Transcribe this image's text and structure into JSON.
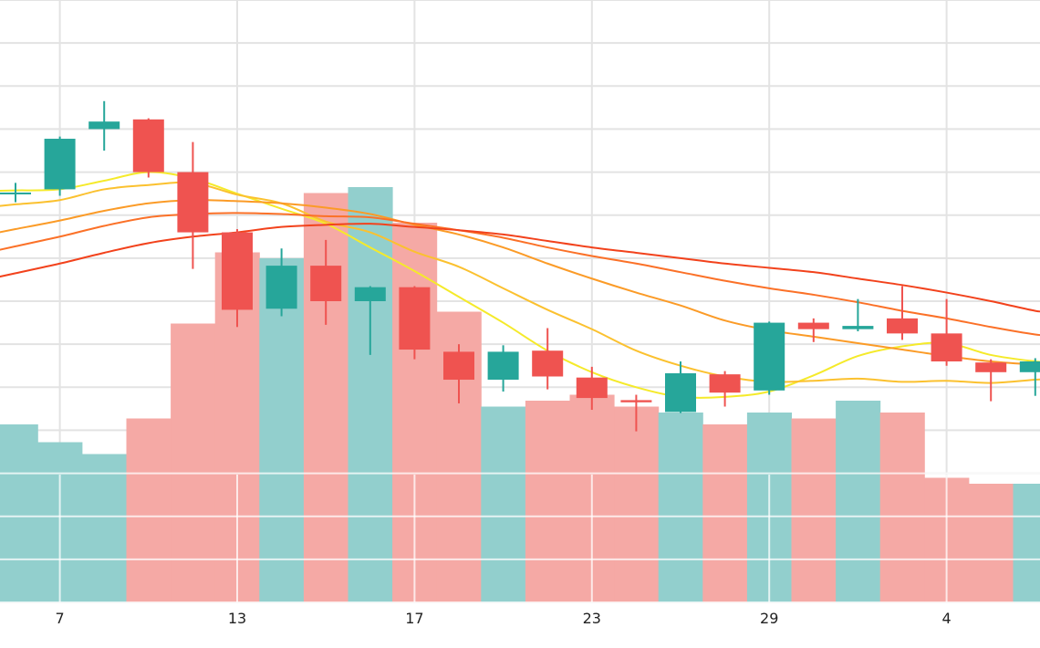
{
  "chart_data": {
    "type": "candlestick",
    "grid": true,
    "x_tick_labels": [
      {
        "index": 1,
        "label": "7"
      },
      {
        "index": 5,
        "label": "13"
      },
      {
        "index": 9,
        "label": "17"
      },
      {
        "index": 13,
        "label": "23"
      },
      {
        "index": 17,
        "label": "29"
      },
      {
        "index": 21,
        "label": "4"
      }
    ],
    "price_range": [
      0,
      28
    ],
    "volume_range": [
      0,
      100
    ],
    "candles": [
      {
        "open": 19.05,
        "high": 19.5,
        "low": 18.6,
        "close": 19.05
      },
      {
        "open": 19.2,
        "high": 21.65,
        "low": 18.9,
        "close": 21.55
      },
      {
        "open": 22.0,
        "high": 23.3,
        "low": 21.0,
        "close": 22.35
      },
      {
        "open": 22.45,
        "high": 22.5,
        "low": 19.75,
        "close": 20.0
      },
      {
        "open": 20.0,
        "high": 21.4,
        "low": 15.5,
        "close": 17.2
      },
      {
        "open": 17.2,
        "high": 17.35,
        "low": 12.8,
        "close": 13.6
      },
      {
        "open": 13.65,
        "high": 16.45,
        "low": 13.3,
        "close": 15.65
      },
      {
        "open": 15.65,
        "high": 16.85,
        "low": 12.9,
        "close": 14.0
      },
      {
        "open": 14.0,
        "high": 14.7,
        "low": 11.5,
        "close": 14.65
      },
      {
        "open": 14.65,
        "high": 14.7,
        "low": 11.3,
        "close": 11.75
      },
      {
        "open": 11.65,
        "high": 12.0,
        "low": 9.25,
        "close": 10.35
      },
      {
        "open": 10.35,
        "high": 11.95,
        "low": 9.8,
        "close": 11.65
      },
      {
        "open": 11.7,
        "high": 12.75,
        "low": 9.9,
        "close": 10.5
      },
      {
        "open": 10.45,
        "high": 10.95,
        "low": 8.95,
        "close": 9.5
      },
      {
        "open": 9.4,
        "high": 9.65,
        "low": 7.95,
        "close": 9.3
      },
      {
        "open": 8.85,
        "high": 11.2,
        "low": 8.8,
        "close": 10.65
      },
      {
        "open": 10.6,
        "high": 10.75,
        "low": 9.1,
        "close": 9.75
      },
      {
        "open": 9.85,
        "high": 13.05,
        "low": 9.65,
        "close": 13.0
      },
      {
        "open": 13.0,
        "high": 13.2,
        "low": 12.1,
        "close": 12.7
      },
      {
        "open": 12.7,
        "high": 14.1,
        "low": 12.6,
        "close": 12.85
      },
      {
        "open": 13.2,
        "high": 14.7,
        "low": 12.2,
        "close": 12.5
      },
      {
        "open": 12.5,
        "high": 14.1,
        "low": 11.0,
        "close": 11.2
      },
      {
        "open": 11.15,
        "high": 11.3,
        "low": 9.35,
        "close": 10.7
      },
      {
        "open": 10.7,
        "high": 11.35,
        "low": 9.6,
        "close": 11.2
      }
    ],
    "volume": [
      30,
      27,
      25,
      31,
      47,
      59,
      58,
      69,
      70,
      64,
      49,
      33,
      34,
      35,
      33,
      32,
      30,
      32,
      31,
      34,
      32,
      21,
      20,
      20
    ],
    "moving_averages": [
      {
        "color": "#f5ea2a",
        "values": [
          19.15,
          19.2,
          19.6,
          20.0,
          19.7,
          19.0,
          18.3,
          17.6,
          16.5,
          15.4,
          14.2,
          13.0,
          11.7,
          10.7,
          10.0,
          9.55,
          9.55,
          9.8,
          10.55,
          11.45,
          11.9,
          12.05,
          11.5,
          11.2
        ]
      },
      {
        "color": "#fbc12f",
        "values": [
          18.5,
          18.7,
          19.2,
          19.4,
          19.5,
          18.95,
          18.55,
          17.7,
          17.2,
          16.3,
          15.6,
          14.6,
          13.6,
          12.7,
          11.7,
          11.0,
          10.5,
          10.25,
          10.3,
          10.4,
          10.25,
          10.3,
          10.2,
          10.35
        ]
      },
      {
        "color": "#fb9b27",
        "values": [
          17.35,
          17.75,
          18.2,
          18.55,
          18.7,
          18.65,
          18.55,
          18.35,
          18.05,
          17.55,
          17.1,
          16.5,
          15.75,
          15.05,
          14.4,
          13.8,
          13.1,
          12.65,
          12.35,
          12.05,
          11.75,
          11.45,
          11.2,
          11.05
        ]
      },
      {
        "color": "#fb7128",
        "values": [
          16.55,
          17.0,
          17.5,
          17.9,
          18.05,
          18.1,
          18.05,
          17.95,
          17.9,
          17.6,
          17.3,
          16.95,
          16.5,
          16.1,
          15.75,
          15.35,
          14.95,
          14.6,
          14.3,
          13.95,
          13.55,
          13.2,
          12.8,
          12.45
        ]
      },
      {
        "color": "#f2421c",
        "values": [
          15.3,
          15.75,
          16.25,
          16.7,
          17.0,
          17.2,
          17.45,
          17.55,
          17.6,
          17.45,
          17.3,
          17.1,
          16.8,
          16.5,
          16.25,
          16.0,
          15.75,
          15.55,
          15.35,
          15.05,
          14.75,
          14.4,
          14.0,
          13.55
        ]
      }
    ],
    "colors": {
      "up": "#26a69a",
      "down": "#ef5350",
      "volume_up": "#92cfcd",
      "volume_down": "#f5a9a5",
      "grid": "#e3e3e3",
      "tick_text": "#222222"
    }
  }
}
